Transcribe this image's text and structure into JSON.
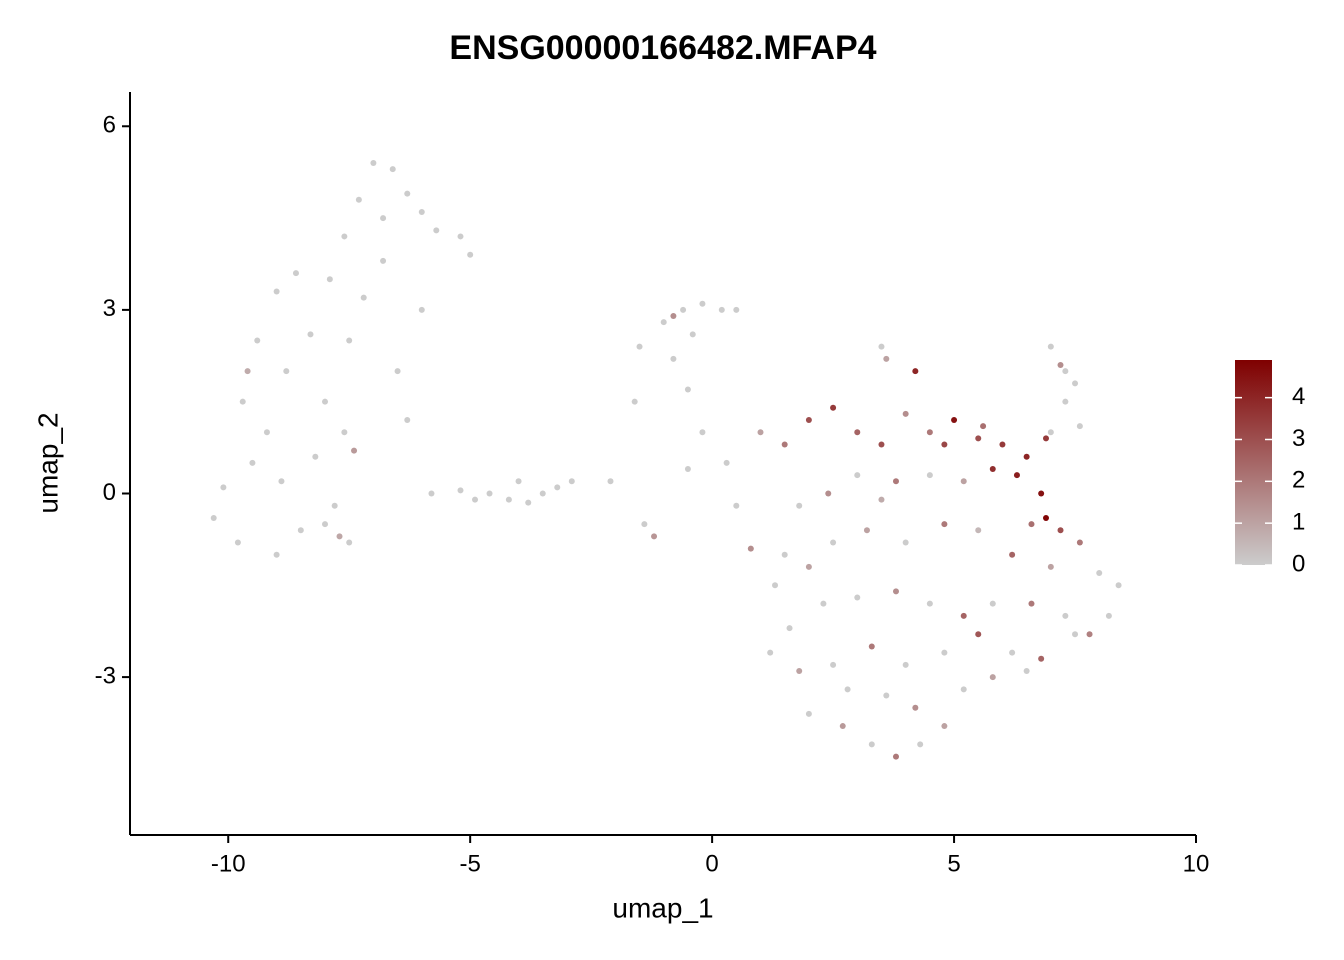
{
  "chart_data": {
    "type": "scatter",
    "title": "ENSG00000166482.MFAP4",
    "x_label": "umap_1",
    "y_label": "umap_2",
    "x": [
      -10.3,
      -10.1,
      -9.8,
      -9.5,
      -9.7,
      -9.4,
      -9.0,
      -8.6,
      -8.8,
      -9.2,
      -8.9,
      -9.0,
      -8.5,
      -8.2,
      -8.0,
      -8.3,
      -7.9,
      -7.6,
      -7.3,
      -7.0,
      -6.6,
      -6.3,
      -6.0,
      -5.7,
      -5.2,
      -5.0,
      -6.8,
      -7.5,
      -7.6,
      -7.8,
      -7.5,
      -8.0,
      -6.0,
      -6.5,
      -6.3,
      -6.8,
      -7.2,
      -9.6,
      -7.4,
      -7.7,
      -5.8,
      -5.2,
      -4.6,
      -4.2,
      -3.8,
      -3.5,
      -4.0,
      -3.2,
      -4.9,
      -2.9,
      -1.0,
      -0.6,
      -0.2,
      0.2,
      -1.5,
      -0.8,
      -0.4,
      0.5,
      -1.6,
      -0.5,
      -0.2,
      -0.5,
      -1.4,
      -1.2,
      -0.8,
      0.3,
      0.5,
      0.8,
      -2.1,
      1.0,
      1.5,
      2.0,
      2.5,
      3.0,
      3.5,
      4.0,
      4.5,
      5.0,
      5.5,
      6.0,
      6.5,
      6.8,
      6.9,
      7.2,
      6.3,
      5.8,
      5.2,
      4.5,
      3.8,
      3.0,
      2.4,
      1.8,
      1.5,
      2.0,
      2.5,
      3.2,
      4.0,
      4.8,
      5.5,
      6.2,
      7.0,
      7.6,
      8.0,
      8.2,
      8.4,
      7.8,
      7.3,
      6.6,
      5.8,
      5.2,
      4.5,
      3.8,
      3.0,
      2.3,
      1.6,
      1.2,
      1.8,
      2.5,
      3.3,
      4.0,
      4.8,
      5.5,
      6.2,
      6.8,
      7.5,
      2.0,
      2.7,
      3.3,
      3.8,
      4.3,
      4.8,
      5.2,
      5.8,
      6.5,
      3.6,
      2.8,
      4.2,
      1.3,
      3.5,
      4.8,
      5.6,
      6.9,
      6.6,
      3.5,
      3.6,
      4.2,
      7.0,
      7.3,
      7.5,
      7.3,
      7.0,
      7.2,
      7.6
    ],
    "y": [
      -0.4,
      0.1,
      -0.8,
      0.5,
      1.5,
      2.5,
      3.3,
      3.6,
      2.0,
      1.0,
      0.2,
      -1.0,
      -0.6,
      0.6,
      1.5,
      2.6,
      3.5,
      4.2,
      4.8,
      5.4,
      5.3,
      4.9,
      4.6,
      4.3,
      4.2,
      3.9,
      4.5,
      2.5,
      1.0,
      -0.2,
      -0.8,
      -0.5,
      3.0,
      2.0,
      1.2,
      3.8,
      3.2,
      2.0,
      0.7,
      -0.7,
      0.0,
      0.05,
      0.0,
      -0.1,
      -0.15,
      0.0,
      0.2,
      0.1,
      -0.1,
      0.2,
      2.8,
      3.0,
      3.1,
      3.0,
      2.4,
      2.2,
      2.6,
      3.0,
      1.5,
      1.7,
      1.0,
      0.4,
      -0.5,
      -0.7,
      2.9,
      0.5,
      -0.2,
      -0.9,
      0.2,
      1.0,
      0.8,
      1.2,
      1.4,
      1.0,
      0.8,
      1.3,
      1.0,
      1.2,
      0.9,
      0.8,
      0.6,
      0.0,
      -0.4,
      -0.6,
      0.3,
      0.4,
      0.2,
      0.3,
      0.2,
      0.3,
      0.0,
      -0.2,
      -1.0,
      -1.2,
      -0.8,
      -0.6,
      -0.8,
      -0.5,
      -0.6,
      -1.0,
      -1.2,
      -0.8,
      -1.3,
      -2.0,
      -1.5,
      -2.3,
      -2.0,
      -1.8,
      -1.8,
      -2.0,
      -1.8,
      -1.6,
      -1.7,
      -1.8,
      -2.2,
      -2.6,
      -2.9,
      -2.8,
      -2.5,
      -2.8,
      -2.6,
      -2.3,
      -2.6,
      -2.7,
      -2.3,
      -3.6,
      -3.8,
      -4.1,
      -4.3,
      -4.1,
      -3.8,
      -3.2,
      -3.0,
      -2.9,
      -3.3,
      -3.2,
      -3.5,
      -1.5,
      -0.1,
      0.8,
      1.1,
      0.9,
      -0.5,
      2.4,
      2.2,
      2.0,
      2.4,
      2.0,
      1.8,
      1.5,
      1.0,
      2.1,
      1.1
    ],
    "values": [
      0,
      0,
      0,
      0,
      0,
      0,
      0,
      0,
      0,
      0,
      0,
      0,
      0,
      0,
      0,
      0,
      0,
      0,
      0,
      0,
      0,
      0,
      0,
      0,
      0,
      0,
      0,
      0,
      0,
      0,
      0,
      0,
      0,
      0,
      0,
      0,
      0,
      0.8,
      1.2,
      0.9,
      0,
      0,
      0,
      0,
      0,
      0,
      0,
      0,
      0,
      0,
      0,
      0,
      0,
      0,
      0,
      0,
      0,
      0,
      0,
      0,
      0,
      0,
      0,
      1.3,
      1.5,
      0,
      0,
      1.5,
      0,
      1,
      2,
      3,
      3.5,
      2.5,
      3,
      1.5,
      2,
      4.5,
      3,
      3.5,
      4,
      4.5,
      4.8,
      3,
      4.2,
      3.8,
      1,
      0,
      2,
      0,
      1.5,
      0,
      0,
      1,
      0,
      1,
      0,
      2,
      0.5,
      2.5,
      1,
      2,
      0,
      0,
      0,
      1.8,
      0,
      2,
      0,
      2.5,
      0,
      1.5,
      0,
      0,
      0,
      0,
      1,
      0,
      2,
      0,
      0,
      2.8,
      0,
      2.5,
      0,
      0,
      1.2,
      0,
      2,
      0,
      1,
      0,
      1,
      0,
      0,
      0,
      1.5,
      0,
      0.8,
      3.2,
      2.2,
      3.5,
      2.2,
      0,
      1,
      4,
      0,
      0,
      0,
      0,
      0,
      1.5,
      0
    ],
    "xlim": [
      -12.03,
      10
    ],
    "ylim": [
      -5.58,
      6.56
    ],
    "xticks": [
      -10,
      -5,
      0,
      5,
      10
    ],
    "yticks": [
      -3,
      0,
      3,
      6
    ],
    "color_scale": {
      "low": "#cccccc",
      "high": "#7f0000",
      "lim": [
        0,
        4.9
      ],
      "ticks": [
        0,
        1,
        2,
        3,
        4
      ]
    }
  }
}
